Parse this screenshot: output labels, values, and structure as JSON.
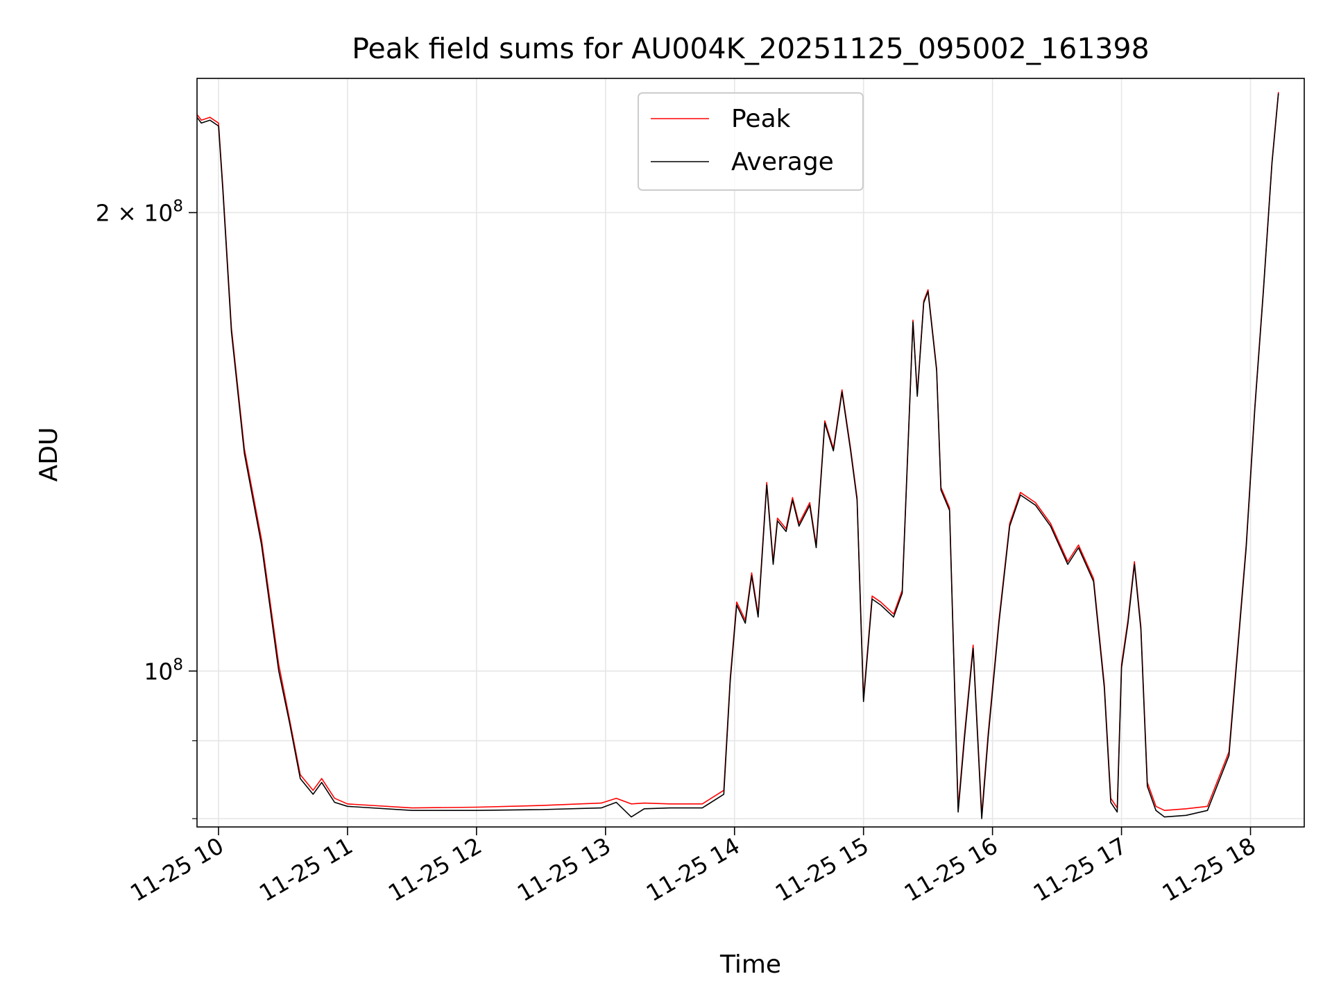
{
  "chart_data": {
    "type": "line",
    "title": "Peak field sums for AU004K_20251125_095002_161398",
    "xlabel": "Time",
    "ylabel": "ADU",
    "yscale": "log",
    "ylim": [
      79000000,
      245000000
    ],
    "xlim": [
      "2025-11-25 09:50",
      "2025-11-25 18:25"
    ],
    "grid": true,
    "legend_position": "top-center",
    "x_tick_labels": [
      "11-25 10",
      "11-25 11",
      "11-25 12",
      "11-25 13",
      "11-25 14",
      "11-25 15",
      "11-25 16",
      "11-25 17",
      "11-25 18"
    ],
    "x_tick_times": [
      "2025-11-25 10:00",
      "2025-11-25 11:00",
      "2025-11-25 12:00",
      "2025-11-25 13:00",
      "2025-11-25 14:00",
      "2025-11-25 15:00",
      "2025-11-25 16:00",
      "2025-11-25 17:00",
      "2025-11-25 18:00"
    ],
    "y_major_ticks": [
      {
        "value": 100000000,
        "base": "10",
        "exp": "8"
      },
      {
        "value": 200000000,
        "base": "2 × 10",
        "exp": "8"
      }
    ],
    "y_minor_ticks": [
      80000000,
      90000000
    ],
    "series": [
      {
        "name": "Peak",
        "color": "#ff0000",
        "x": [
          "2025-11-25 09:50",
          "2025-11-25 09:52",
          "2025-11-25 09:56",
          "2025-11-25 10:00",
          "2025-11-25 10:02",
          "2025-11-25 10:06",
          "2025-11-25 10:12",
          "2025-11-25 10:20",
          "2025-11-25 10:28",
          "2025-11-25 10:33",
          "2025-11-25 10:38",
          "2025-11-25 10:44",
          "2025-11-25 10:48",
          "2025-11-25 10:54",
          "2025-11-25 11:00",
          "2025-11-25 11:30",
          "2025-11-25 12:00",
          "2025-11-25 12:30",
          "2025-11-25 12:58",
          "2025-11-25 13:05",
          "2025-11-25 13:12",
          "2025-11-25 13:18",
          "2025-11-25 13:30",
          "2025-11-25 13:45",
          "2025-11-25 13:55",
          "2025-11-25 13:58",
          "2025-11-25 14:01",
          "2025-11-25 14:05",
          "2025-11-25 14:08",
          "2025-11-25 14:11",
          "2025-11-25 14:15",
          "2025-11-25 14:18",
          "2025-11-25 14:20",
          "2025-11-25 14:24",
          "2025-11-25 14:27",
          "2025-11-25 14:30",
          "2025-11-25 14:35",
          "2025-11-25 14:38",
          "2025-11-25 14:42",
          "2025-11-25 14:46",
          "2025-11-25 14:50",
          "2025-11-25 14:54",
          "2025-11-25 14:57",
          "2025-11-25 15:00",
          "2025-11-25 15:04",
          "2025-11-25 15:08",
          "2025-11-25 15:14",
          "2025-11-25 15:18",
          "2025-11-25 15:23",
          "2025-11-25 15:25",
          "2025-11-25 15:28",
          "2025-11-25 15:30",
          "2025-11-25 15:34",
          "2025-11-25 15:36",
          "2025-11-25 15:40",
          "2025-11-25 15:44",
          "2025-11-25 15:47",
          "2025-11-25 15:51",
          "2025-11-25 15:55",
          "2025-11-25 15:58",
          "2025-11-25 16:03",
          "2025-11-25 16:08",
          "2025-11-25 16:13",
          "2025-11-25 16:20",
          "2025-11-25 16:27",
          "2025-11-25 16:35",
          "2025-11-25 16:40",
          "2025-11-25 16:47",
          "2025-11-25 16:52",
          "2025-11-25 16:55",
          "2025-11-25 16:58",
          "2025-11-25 17:00",
          "2025-11-25 17:03",
          "2025-11-25 17:06",
          "2025-11-25 17:09",
          "2025-11-25 17:12",
          "2025-11-25 17:16",
          "2025-11-25 17:20",
          "2025-11-25 17:30",
          "2025-11-25 17:40",
          "2025-11-25 17:50",
          "2025-11-25 17:58",
          "2025-11-25 18:02",
          "2025-11-25 18:06",
          "2025-11-25 18:10",
          "2025-11-25 18:13"
        ],
        "values": [
          232000000,
          230000000,
          231000000,
          229000000,
          208000000,
          168000000,
          140000000,
          122000000,
          101000000,
          93000000,
          85500000,
          83500000,
          85000000,
          82500000,
          81800000,
          81300000,
          81400000,
          81600000,
          81900000,
          82500000,
          81800000,
          81900000,
          81800000,
          81800000,
          83500000,
          99000000,
          111000000,
          108000000,
          116000000,
          109000000,
          133000000,
          118000000,
          126000000,
          124000000,
          130000000,
          125000000,
          129000000,
          121000000,
          146000000,
          140000000,
          153000000,
          140000000,
          130000000,
          96000000,
          112000000,
          111000000,
          109000000,
          113000000,
          170000000,
          152000000,
          175000000,
          178000000,
          158000000,
          132000000,
          128000000,
          81300000,
          91000000,
          104000000,
          80500000,
          91000000,
          108000000,
          125000000,
          131000000,
          129000000,
          125000000,
          118000000,
          121000000,
          115000000,
          98000000,
          82500000,
          81300000,
          101000000,
          108000000,
          118000000,
          107000000,
          84500000,
          81500000,
          81000000,
          81200000,
          81500000,
          88500000,
          121000000,
          149000000,
          178000000,
          216000000,
          240000000
        ]
      },
      {
        "name": "Average",
        "color": "#000000",
        "x": [
          "2025-11-25 09:50",
          "2025-11-25 09:52",
          "2025-11-25 09:56",
          "2025-11-25 10:00",
          "2025-11-25 10:02",
          "2025-11-25 10:06",
          "2025-11-25 10:12",
          "2025-11-25 10:20",
          "2025-11-25 10:28",
          "2025-11-25 10:33",
          "2025-11-25 10:38",
          "2025-11-25 10:44",
          "2025-11-25 10:48",
          "2025-11-25 10:54",
          "2025-11-25 11:00",
          "2025-11-25 11:30",
          "2025-11-25 12:00",
          "2025-11-25 12:30",
          "2025-11-25 12:58",
          "2025-11-25 13:05",
          "2025-11-25 13:12",
          "2025-11-25 13:18",
          "2025-11-25 13:30",
          "2025-11-25 13:45",
          "2025-11-25 13:55",
          "2025-11-25 13:58",
          "2025-11-25 14:01",
          "2025-11-25 14:05",
          "2025-11-25 14:08",
          "2025-11-25 14:11",
          "2025-11-25 14:15",
          "2025-11-25 14:18",
          "2025-11-25 14:20",
          "2025-11-25 14:24",
          "2025-11-25 14:27",
          "2025-11-25 14:30",
          "2025-11-25 14:35",
          "2025-11-25 14:38",
          "2025-11-25 14:42",
          "2025-11-25 14:46",
          "2025-11-25 14:50",
          "2025-11-25 14:54",
          "2025-11-25 14:57",
          "2025-11-25 15:00",
          "2025-11-25 15:04",
          "2025-11-25 15:08",
          "2025-11-25 15:14",
          "2025-11-25 15:18",
          "2025-11-25 15:23",
          "2025-11-25 15:25",
          "2025-11-25 15:28",
          "2025-11-25 15:30",
          "2025-11-25 15:34",
          "2025-11-25 15:36",
          "2025-11-25 15:40",
          "2025-11-25 15:44",
          "2025-11-25 15:47",
          "2025-11-25 15:51",
          "2025-11-25 15:55",
          "2025-11-25 15:58",
          "2025-11-25 16:03",
          "2025-11-25 16:08",
          "2025-11-25 16:13",
          "2025-11-25 16:20",
          "2025-11-25 16:27",
          "2025-11-25 16:35",
          "2025-11-25 16:40",
          "2025-11-25 16:47",
          "2025-11-25 16:52",
          "2025-11-25 16:55",
          "2025-11-25 16:58",
          "2025-11-25 17:00",
          "2025-11-25 17:03",
          "2025-11-25 17:06",
          "2025-11-25 17:09",
          "2025-11-25 17:12",
          "2025-11-25 17:16",
          "2025-11-25 17:20",
          "2025-11-25 17:30",
          "2025-11-25 17:40",
          "2025-11-25 17:50",
          "2025-11-25 17:58",
          "2025-11-25 18:02",
          "2025-11-25 18:06",
          "2025-11-25 18:10",
          "2025-11-25 18:13"
        ],
        "values": [
          231000000,
          229000000,
          230000000,
          228000000,
          207000000,
          167000000,
          139000000,
          121000000,
          100000000,
          92500000,
          85000000,
          83000000,
          84500000,
          82000000,
          81500000,
          81000000,
          81000000,
          81100000,
          81300000,
          82000000,
          80200000,
          81200000,
          81300000,
          81300000,
          83000000,
          98500000,
          110500000,
          107500000,
          115500000,
          108500000,
          132500000,
          117500000,
          125500000,
          123500000,
          129500000,
          124500000,
          128500000,
          120500000,
          145500000,
          139500000,
          152500000,
          139500000,
          129500000,
          95500000,
          111500000,
          110500000,
          108500000,
          112500000,
          169500000,
          151500000,
          174500000,
          177500000,
          157500000,
          131500000,
          127500000,
          80800000,
          90500000,
          103500000,
          80000000,
          90500000,
          107500000,
          124500000,
          130500000,
          128500000,
          124500000,
          117500000,
          120500000,
          114500000,
          97500000,
          82000000,
          80800000,
          100500000,
          107500000,
          117500000,
          106500000,
          84000000,
          81000000,
          80200000,
          80400000,
          81000000,
          88000000,
          120500000,
          148500000,
          177500000,
          215500000,
          239500000
        ]
      }
    ]
  }
}
